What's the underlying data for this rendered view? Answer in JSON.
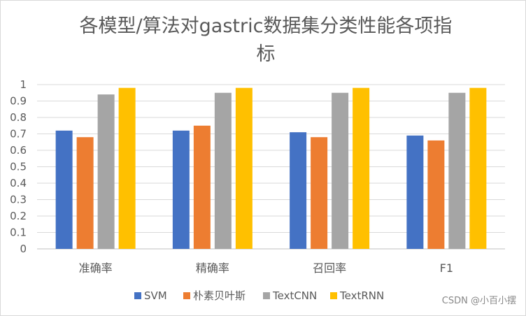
{
  "chart_data": {
    "type": "bar",
    "title_lines": [
      "各模型/算法对gastric数据集分类性能各项指",
      "标"
    ],
    "categories": [
      "准确率",
      "精确率",
      "召回率",
      "F1"
    ],
    "series": [
      {
        "name": "SVM",
        "color": "#4472C4",
        "values": [
          0.72,
          0.72,
          0.71,
          0.69
        ]
      },
      {
        "name": "朴素贝叶斯",
        "color": "#ED7D31",
        "values": [
          0.68,
          0.75,
          0.68,
          0.66
        ]
      },
      {
        "name": "TextCNN",
        "color": "#A5A5A5",
        "values": [
          0.94,
          0.95,
          0.95,
          0.95
        ]
      },
      {
        "name": "TextRNN",
        "color": "#FFC000",
        "values": [
          0.98,
          0.98,
          0.98,
          0.98
        ]
      }
    ],
    "yticks": [
      "0",
      "0.1",
      "0.2",
      "0.3",
      "0.4",
      "0.5",
      "0.6",
      "0.7",
      "0.8",
      "0.9",
      "1"
    ],
    "ylim": [
      0,
      1
    ],
    "grid": true,
    "legend_position": "bottom"
  },
  "watermark": "CSDN @小百小摆"
}
